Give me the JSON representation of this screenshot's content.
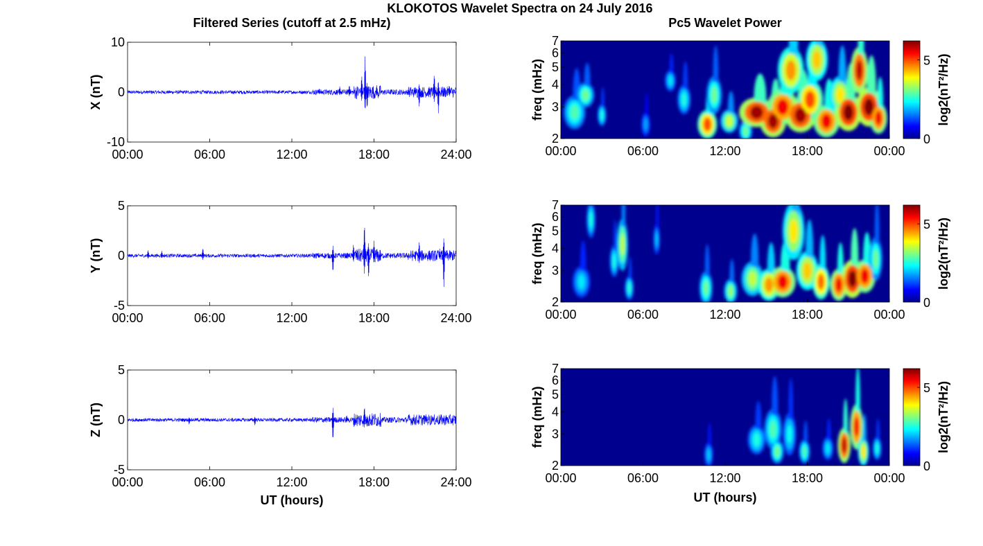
{
  "figure": {
    "suptitle": "KLOKOTOS Wavelet Spectra on 24 July 2016",
    "left_title": "Filtered Series (cutoff at 2.5 mHz)",
    "right_title": "Pc5 Wavelet Power",
    "xlabel": "UT (hours)"
  },
  "colors": {
    "trace": "#0000ff",
    "background_spec": "#00008f"
  },
  "chart_data": [
    {
      "type": "line",
      "component": "X",
      "ylabel": "X (nT)",
      "ylim": [
        -10,
        10
      ],
      "yticks": [
        "10",
        "0",
        "-10"
      ],
      "xlim": [
        0,
        24
      ],
      "xticks": [
        "00:00",
        "06:00",
        "12:00",
        "18:00",
        "24:00"
      ],
      "activity": [
        {
          "t": 14.0,
          "amp": 0.8
        },
        {
          "t": 15.5,
          "amp": 1.2
        },
        {
          "t": 16.2,
          "amp": 1.5
        },
        {
          "t": 17.1,
          "amp": 3.5
        },
        {
          "t": 17.35,
          "amp": 7.3
        },
        {
          "t": 17.5,
          "amp": -3.5
        },
        {
          "t": 18.2,
          "amp": 1.5
        },
        {
          "t": 21.0,
          "amp": 1.2
        },
        {
          "t": 21.3,
          "amp": -3.2
        },
        {
          "t": 22.4,
          "amp": 3.8
        },
        {
          "t": 22.7,
          "amp": -4.4
        },
        {
          "t": 23.5,
          "amp": 1.5
        }
      ]
    },
    {
      "type": "line",
      "component": "Y",
      "ylabel": "Y (nT)",
      "ylim": [
        -5,
        5
      ],
      "yticks": [
        "5",
        "0",
        "-5"
      ],
      "xlim": [
        0,
        24
      ],
      "xticks": [
        "00:00",
        "06:00",
        "12:00",
        "18:00",
        "24:00"
      ],
      "activity": [
        {
          "t": 1.5,
          "amp": 0.6
        },
        {
          "t": 2.5,
          "amp": 0.5
        },
        {
          "t": 5.5,
          "amp": 0.8
        },
        {
          "t": 15.0,
          "amp": -1.8
        },
        {
          "t": 16.5,
          "amp": 1.2
        },
        {
          "t": 17.3,
          "amp": 3.4
        },
        {
          "t": 17.6,
          "amp": -2.4
        },
        {
          "t": 18.0,
          "amp": 1.5
        },
        {
          "t": 21.3,
          "amp": 1.5
        },
        {
          "t": 22.8,
          "amp": 0.7
        },
        {
          "t": 23.1,
          "amp": -3.5
        }
      ]
    },
    {
      "type": "line",
      "component": "Z",
      "ylabel": "Z (nT)",
      "ylim": [
        -5,
        5
      ],
      "yticks": [
        "5",
        "0",
        "-5"
      ],
      "xlim": [
        0,
        24
      ],
      "xticks": [
        "00:00",
        "06:00",
        "12:00",
        "18:00",
        "24:00"
      ],
      "activity": [
        {
          "t": 4.5,
          "amp": -0.5
        },
        {
          "t": 9.3,
          "amp": -0.6
        },
        {
          "t": 15.0,
          "amp": -2.2
        },
        {
          "t": 16.0,
          "amp": 0.5
        },
        {
          "t": 17.3,
          "amp": 1.4
        },
        {
          "t": 17.5,
          "amp": -0.8
        },
        {
          "t": 21.8,
          "amp": 0.6
        },
        {
          "t": 22.3,
          "amp": 0.4
        }
      ]
    },
    {
      "type": "heatmap",
      "component": "X",
      "ylabel": "freq (mHz)",
      "yscale": "log",
      "ylim": [
        2,
        7
      ],
      "yticks": [
        "2",
        "3",
        "4",
        "5",
        "6",
        "7"
      ],
      "xlim": [
        0,
        24
      ],
      "xticks": [
        "00:00",
        "06:00",
        "12:00",
        "18:00",
        "00:00"
      ],
      "colorbar_label": "log2(nT²/Hz)",
      "colorbar_ticks": [
        "5",
        "0"
      ],
      "clim": [
        0,
        6.2
      ],
      "blobs": [
        {
          "t": 1.0,
          "f": 2.8,
          "w": 0.5,
          "h": 0.35,
          "v": 2.8
        },
        {
          "t": 1.8,
          "f": 3.5,
          "w": 0.4,
          "h": 0.3,
          "v": 3.0
        },
        {
          "t": 3.0,
          "f": 2.7,
          "w": 0.2,
          "h": 0.2,
          "v": 2.5
        },
        {
          "t": 6.2,
          "f": 2.4,
          "w": 0.2,
          "h": 0.2,
          "v": 1.8
        },
        {
          "t": 8.0,
          "f": 4.2,
          "w": 0.25,
          "h": 0.3,
          "v": 2.2
        },
        {
          "t": 9.0,
          "f": 3.3,
          "w": 0.3,
          "h": 0.35,
          "v": 2.5
        },
        {
          "t": 10.7,
          "f": 2.4,
          "w": 0.45,
          "h": 0.25,
          "v": 5.0
        },
        {
          "t": 11.2,
          "f": 3.5,
          "w": 0.35,
          "h": 0.5,
          "v": 3.0
        },
        {
          "t": 12.3,
          "f": 2.5,
          "w": 0.4,
          "h": 0.2,
          "v": 3.6
        },
        {
          "t": 13.5,
          "f": 2.2,
          "w": 0.3,
          "h": 0.15,
          "v": 3.0
        },
        {
          "t": 14.3,
          "f": 2.8,
          "w": 0.8,
          "h": 0.3,
          "v": 6.0
        },
        {
          "t": 15.5,
          "f": 2.5,
          "w": 0.6,
          "h": 0.3,
          "v": 6.0
        },
        {
          "t": 16.2,
          "f": 3.0,
          "w": 0.7,
          "h": 0.4,
          "v": 5.5
        },
        {
          "t": 16.8,
          "f": 4.8,
          "w": 0.6,
          "h": 0.9,
          "v": 4.5
        },
        {
          "t": 17.5,
          "f": 2.7,
          "w": 0.7,
          "h": 0.35,
          "v": 6.0
        },
        {
          "t": 18.2,
          "f": 3.3,
          "w": 0.6,
          "h": 0.5,
          "v": 5.0
        },
        {
          "t": 18.7,
          "f": 5.5,
          "w": 0.5,
          "h": 0.9,
          "v": 4.2
        },
        {
          "t": 19.4,
          "f": 2.5,
          "w": 0.6,
          "h": 0.3,
          "v": 5.5
        },
        {
          "t": 20.4,
          "f": 3.5,
          "w": 0.5,
          "h": 0.5,
          "v": 4.0
        },
        {
          "t": 21.0,
          "f": 2.8,
          "w": 0.6,
          "h": 0.4,
          "v": 6.2
        },
        {
          "t": 21.8,
          "f": 4.8,
          "w": 0.4,
          "h": 0.9,
          "v": 5.8
        },
        {
          "t": 22.5,
          "f": 3.0,
          "w": 0.6,
          "h": 0.45,
          "v": 6.2
        },
        {
          "t": 23.2,
          "f": 2.6,
          "w": 0.4,
          "h": 0.3,
          "v": 5.5
        }
      ]
    },
    {
      "type": "heatmap",
      "component": "Y",
      "ylabel": "freq (mHz)",
      "yscale": "log",
      "ylim": [
        2,
        7
      ],
      "yticks": [
        "2",
        "3",
        "4",
        "5",
        "6",
        "7"
      ],
      "xlim": [
        0,
        24
      ],
      "xticks": [
        "00:00",
        "06:00",
        "12:00",
        "18:00",
        "00:00"
      ],
      "colorbar_label": "log2(nT²/Hz)",
      "colorbar_ticks": [
        "5",
        "0"
      ],
      "clim": [
        0,
        6.2
      ],
      "blobs": [
        {
          "t": 1.5,
          "f": 2.6,
          "w": 0.4,
          "h": 0.3,
          "v": 2.2
        },
        {
          "t": 2.2,
          "f": 5.8,
          "w": 0.2,
          "h": 0.8,
          "v": 2.5
        },
        {
          "t": 3.9,
          "f": 3.4,
          "w": 0.2,
          "h": 0.4,
          "v": 2.5
        },
        {
          "t": 4.5,
          "f": 4.2,
          "w": 0.25,
          "h": 0.9,
          "v": 3.5
        },
        {
          "t": 5.0,
          "f": 2.4,
          "w": 0.2,
          "h": 0.2,
          "v": 2.6
        },
        {
          "t": 7.0,
          "f": 4.5,
          "w": 0.15,
          "h": 0.5,
          "v": 2.0
        },
        {
          "t": 10.6,
          "f": 2.4,
          "w": 0.3,
          "h": 0.3,
          "v": 3.0
        },
        {
          "t": 12.4,
          "f": 2.3,
          "w": 0.3,
          "h": 0.2,
          "v": 3.2
        },
        {
          "t": 14.0,
          "f": 2.7,
          "w": 0.5,
          "h": 0.35,
          "v": 3.5
        },
        {
          "t": 15.2,
          "f": 2.5,
          "w": 0.5,
          "h": 0.3,
          "v": 4.5
        },
        {
          "t": 16.2,
          "f": 2.6,
          "w": 0.6,
          "h": 0.3,
          "v": 5.5
        },
        {
          "t": 17.0,
          "f": 5.0,
          "w": 0.5,
          "h": 1.2,
          "v": 4.0
        },
        {
          "t": 18.0,
          "f": 3.0,
          "w": 0.5,
          "h": 0.45,
          "v": 4.2
        },
        {
          "t": 19.0,
          "f": 2.6,
          "w": 0.4,
          "h": 0.35,
          "v": 4.8
        },
        {
          "t": 20.3,
          "f": 2.5,
          "w": 0.4,
          "h": 0.3,
          "v": 5.5
        },
        {
          "t": 21.3,
          "f": 2.7,
          "w": 0.5,
          "h": 0.4,
          "v": 6.2
        },
        {
          "t": 22.2,
          "f": 2.8,
          "w": 0.5,
          "h": 0.35,
          "v": 5.5
        },
        {
          "t": 23.0,
          "f": 3.5,
          "w": 0.3,
          "h": 0.6,
          "v": 3.0
        }
      ]
    },
    {
      "type": "heatmap",
      "component": "Z",
      "ylabel": "freq (mHz)",
      "yscale": "log",
      "ylim": [
        2,
        7
      ],
      "yticks": [
        "2",
        "3",
        "4",
        "5",
        "6",
        "7"
      ],
      "xlim": [
        0,
        24
      ],
      "xticks": [
        "00:00",
        "06:00",
        "12:00",
        "18:00",
        "00:00"
      ],
      "colorbar_label": "log2(nT²/Hz)",
      "colorbar_ticks": [
        "5",
        "0"
      ],
      "clim": [
        0,
        6.2
      ],
      "blobs": [
        {
          "t": 10.8,
          "f": 2.3,
          "w": 0.2,
          "h": 0.2,
          "v": 2.0
        },
        {
          "t": 14.3,
          "f": 2.8,
          "w": 0.4,
          "h": 0.3,
          "v": 2.5
        },
        {
          "t": 15.5,
          "f": 3.2,
          "w": 0.4,
          "h": 0.5,
          "v": 2.8
        },
        {
          "t": 15.8,
          "f": 2.4,
          "w": 0.3,
          "h": 0.2,
          "v": 3.0
        },
        {
          "t": 16.7,
          "f": 3.0,
          "w": 0.3,
          "h": 0.5,
          "v": 2.4
        },
        {
          "t": 17.8,
          "f": 2.4,
          "w": 0.25,
          "h": 0.2,
          "v": 2.8
        },
        {
          "t": 19.5,
          "f": 2.5,
          "w": 0.25,
          "h": 0.2,
          "v": 2.2
        },
        {
          "t": 20.7,
          "f": 2.6,
          "w": 0.3,
          "h": 0.35,
          "v": 5.8
        },
        {
          "t": 21.6,
          "f": 3.3,
          "w": 0.3,
          "h": 0.6,
          "v": 5.5
        },
        {
          "t": 22.1,
          "f": 2.4,
          "w": 0.25,
          "h": 0.25,
          "v": 4.0
        },
        {
          "t": 23.1,
          "f": 2.5,
          "w": 0.2,
          "h": 0.2,
          "v": 2.5
        }
      ]
    }
  ]
}
